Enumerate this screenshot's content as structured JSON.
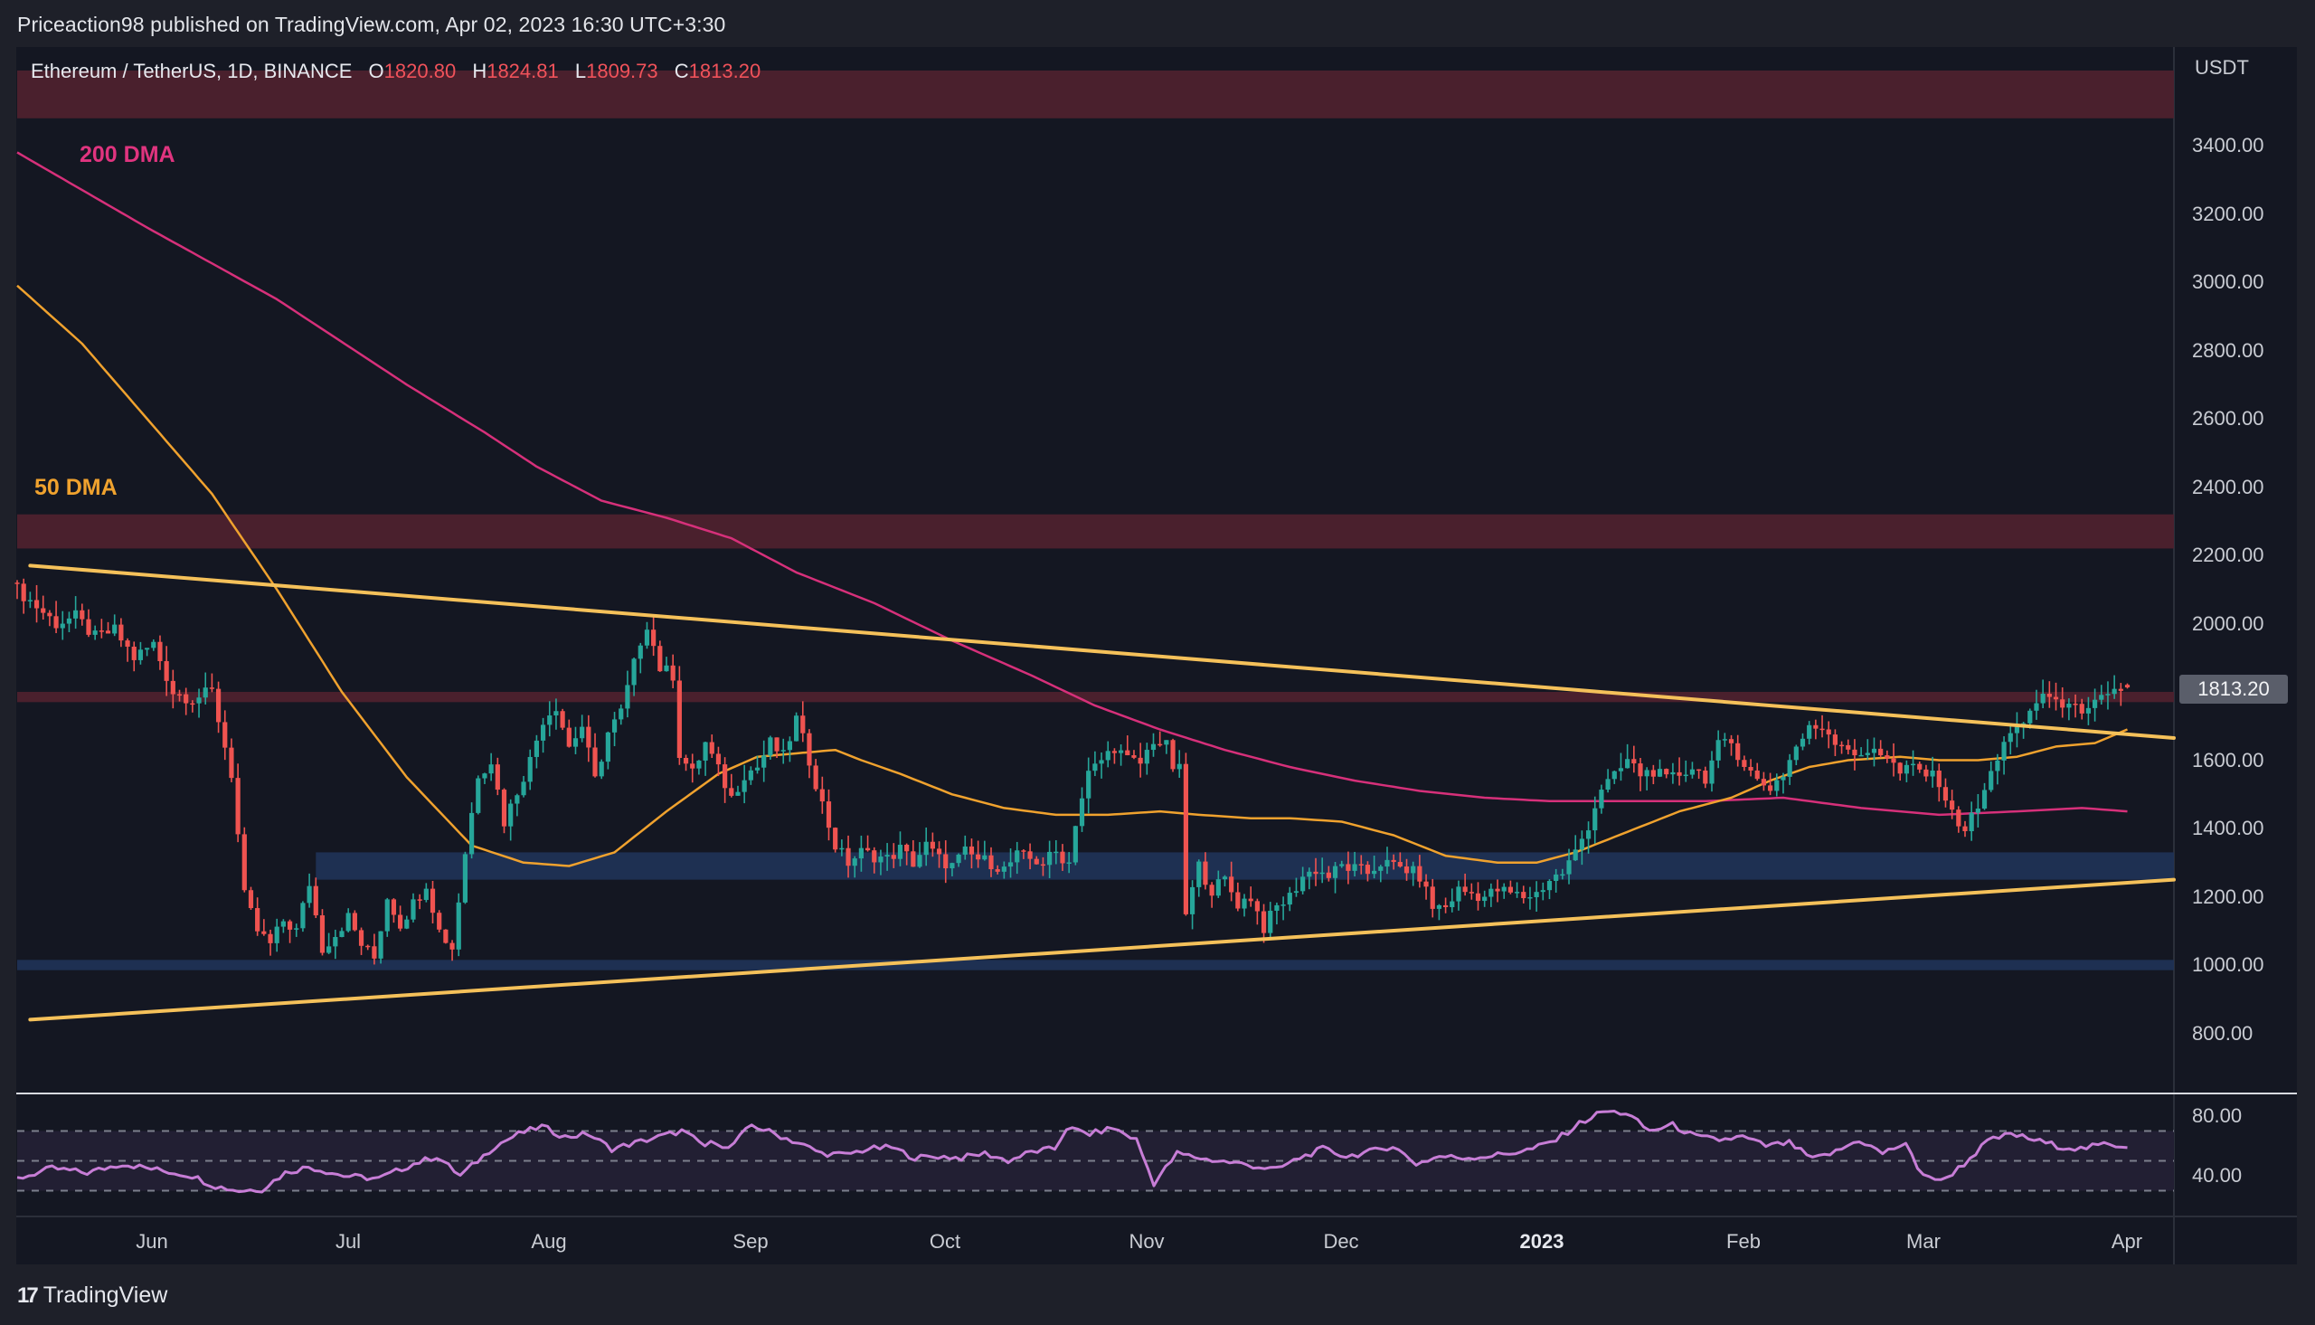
{
  "header": {
    "publisher": "Priceaction98 published on TradingView.com, Apr 02, 2023 16:30 UTC+3:30"
  },
  "legend": {
    "symbol": "Ethereum / TetherUS, 1D, BINANCE",
    "open_key": "O",
    "open": "1820.80",
    "high_key": "H",
    "high": "1824.81",
    "low_key": "L",
    "low": "1809.73",
    "close_key": "C",
    "close": "1813.20"
  },
  "annotations": {
    "ma200_label": "200 DMA",
    "ma50_label": "50 DMA"
  },
  "price_axis": {
    "unit": "USDT",
    "ticks": [
      "3400.00",
      "3200.00",
      "3000.00",
      "2800.00",
      "2600.00",
      "2400.00",
      "2200.00",
      "2000.00",
      "1600.00",
      "1400.00",
      "1200.00",
      "1000.00",
      "800.00"
    ],
    "last_price_badge": "1813.20"
  },
  "rsi_axis": {
    "ticks": [
      "80.00",
      "40.00"
    ]
  },
  "time_axis": {
    "labels": [
      "Jun",
      "Jul",
      "Aug",
      "Sep",
      "Oct",
      "Nov",
      "Dec",
      "2023",
      "Feb",
      "Mar",
      "Apr"
    ]
  },
  "footer": {
    "brand": "TradingView",
    "logo_glyph": "17"
  },
  "colors": {
    "up": "#26a69a",
    "down": "#ef5350",
    "ma200": "#d6307a",
    "ma50": "#f0a22e",
    "trendline": "#f5c15a",
    "resistance_zone": "#4d212e",
    "support_zone": "#1f3358",
    "rsi_line": "#c77dd6"
  },
  "chart_data": {
    "type": "candlestick",
    "title": "Ethereum / TetherUS, 1D, BINANCE",
    "ylabel": "USDT",
    "ylim": [
      700,
      3550
    ],
    "start_date": "2022-05-12",
    "end_date": "2023-04-02",
    "last_ohlc": {
      "open": 1820.8,
      "high": 1824.81,
      "low": 1809.73,
      "close": 1813.2
    },
    "price_anchors": [
      [
        0,
        2100
      ],
      [
        3,
        2050
      ],
      [
        6,
        2000
      ],
      [
        9,
        2020
      ],
      [
        12,
        1960
      ],
      [
        15,
        1980
      ],
      [
        18,
        1900
      ],
      [
        21,
        1940
      ],
      [
        24,
        1800
      ],
      [
        27,
        1780
      ],
      [
        30,
        1800
      ],
      [
        33,
        1560
      ],
      [
        35,
        1200
      ],
      [
        37,
        1100
      ],
      [
        39,
        1060
      ],
      [
        41,
        1130
      ],
      [
        43,
        1100
      ],
      [
        45,
        1240
      ],
      [
        47,
        1050
      ],
      [
        49,
        1090
      ],
      [
        51,
        1140
      ],
      [
        53,
        1060
      ],
      [
        55,
        1020
      ],
      [
        57,
        1200
      ],
      [
        59,
        1120
      ],
      [
        61,
        1180
      ],
      [
        63,
        1240
      ],
      [
        65,
        1100
      ],
      [
        67,
        1050
      ],
      [
        69,
        1330
      ],
      [
        71,
        1560
      ],
      [
        73,
        1600
      ],
      [
        75,
        1420
      ],
      [
        77,
        1510
      ],
      [
        79,
        1600
      ],
      [
        81,
        1720
      ],
      [
        83,
        1760
      ],
      [
        85,
        1640
      ],
      [
        87,
        1700
      ],
      [
        89,
        1540
      ],
      [
        91,
        1680
      ],
      [
        93,
        1740
      ],
      [
        95,
        1880
      ],
      [
        96,
        1950
      ],
      [
        97,
        2000
      ],
      [
        99,
        1870
      ],
      [
        101,
        1850
      ],
      [
        102,
        1620
      ],
      [
        104,
        1560
      ],
      [
        106,
        1650
      ],
      [
        108,
        1570
      ],
      [
        110,
        1490
      ],
      [
        112,
        1560
      ],
      [
        114,
        1580
      ],
      [
        116,
        1650
      ],
      [
        118,
        1610
      ],
      [
        120,
        1720
      ],
      [
        122,
        1600
      ],
      [
        124,
        1470
      ],
      [
        126,
        1350
      ],
      [
        128,
        1300
      ],
      [
        130,
        1330
      ],
      [
        132,
        1320
      ],
      [
        134,
        1310
      ],
      [
        136,
        1340
      ],
      [
        138,
        1300
      ],
      [
        140,
        1350
      ],
      [
        142,
        1310
      ],
      [
        144,
        1290
      ],
      [
        146,
        1330
      ],
      [
        148,
        1310
      ],
      [
        150,
        1300
      ],
      [
        152,
        1280
      ],
      [
        154,
        1320
      ],
      [
        156,
        1310
      ],
      [
        158,
        1300
      ],
      [
        160,
        1330
      ],
      [
        162,
        1300
      ],
      [
        163,
        1420
      ],
      [
        165,
        1560
      ],
      [
        167,
        1600
      ],
      [
        169,
        1640
      ],
      [
        171,
        1600
      ],
      [
        173,
        1590
      ],
      [
        175,
        1660
      ],
      [
        177,
        1640
      ],
      [
        178,
        1580
      ],
      [
        179,
        1570
      ],
      [
        180,
        1150
      ],
      [
        182,
        1290
      ],
      [
        184,
        1220
      ],
      [
        186,
        1250
      ],
      [
        188,
        1180
      ],
      [
        190,
        1200
      ],
      [
        192,
        1110
      ],
      [
        194,
        1170
      ],
      [
        196,
        1200
      ],
      [
        198,
        1260
      ],
      [
        200,
        1280
      ],
      [
        202,
        1260
      ],
      [
        204,
        1290
      ],
      [
        206,
        1280
      ],
      [
        208,
        1270
      ],
      [
        210,
        1300
      ],
      [
        212,
        1290
      ],
      [
        214,
        1280
      ],
      [
        216,
        1260
      ],
      [
        218,
        1170
      ],
      [
        220,
        1170
      ],
      [
        222,
        1220
      ],
      [
        224,
        1210
      ],
      [
        226,
        1200
      ],
      [
        228,
        1220
      ],
      [
        230,
        1210
      ],
      [
        232,
        1200
      ],
      [
        234,
        1210
      ],
      [
        236,
        1250
      ],
      [
        238,
        1270
      ],
      [
        240,
        1330
      ],
      [
        242,
        1410
      ],
      [
        244,
        1520
      ],
      [
        246,
        1550
      ],
      [
        248,
        1600
      ],
      [
        250,
        1560
      ],
      [
        252,
        1570
      ],
      [
        254,
        1540
      ],
      [
        256,
        1560
      ],
      [
        258,
        1580
      ],
      [
        260,
        1550
      ],
      [
        262,
        1640
      ],
      [
        264,
        1650
      ],
      [
        266,
        1590
      ],
      [
        268,
        1540
      ],
      [
        270,
        1520
      ],
      [
        272,
        1560
      ],
      [
        274,
        1640
      ],
      [
        276,
        1690
      ],
      [
        278,
        1700
      ],
      [
        280,
        1660
      ],
      [
        282,
        1640
      ],
      [
        284,
        1600
      ],
      [
        286,
        1640
      ],
      [
        288,
        1610
      ],
      [
        290,
        1560
      ],
      [
        292,
        1580
      ],
      [
        294,
        1560
      ],
      [
        296,
        1540
      ],
      [
        298,
        1440
      ],
      [
        300,
        1400
      ],
      [
        302,
        1460
      ],
      [
        304,
        1560
      ],
      [
        306,
        1660
      ],
      [
        308,
        1680
      ],
      [
        310,
        1740
      ],
      [
        312,
        1800
      ],
      [
        314,
        1760
      ],
      [
        316,
        1780
      ],
      [
        318,
        1720
      ],
      [
        320,
        1760
      ],
      [
        322,
        1800
      ],
      [
        324,
        1810
      ],
      [
        325,
        1813.2
      ]
    ],
    "ma50_anchors": [
      [
        0,
        2990
      ],
      [
        10,
        2820
      ],
      [
        20,
        2600
      ],
      [
        30,
        2380
      ],
      [
        40,
        2100
      ],
      [
        50,
        1800
      ],
      [
        60,
        1550
      ],
      [
        70,
        1350
      ],
      [
        78,
        1300
      ],
      [
        85,
        1290
      ],
      [
        92,
        1330
      ],
      [
        100,
        1450
      ],
      [
        108,
        1560
      ],
      [
        114,
        1610
      ],
      [
        120,
        1620
      ],
      [
        126,
        1630
      ],
      [
        130,
        1600
      ],
      [
        136,
        1560
      ],
      [
        144,
        1500
      ],
      [
        152,
        1460
      ],
      [
        160,
        1440
      ],
      [
        168,
        1440
      ],
      [
        176,
        1450
      ],
      [
        182,
        1440
      ],
      [
        190,
        1430
      ],
      [
        196,
        1430
      ],
      [
        204,
        1420
      ],
      [
        212,
        1380
      ],
      [
        220,
        1320
      ],
      [
        228,
        1300
      ],
      [
        234,
        1300
      ],
      [
        240,
        1330
      ],
      [
        248,
        1390
      ],
      [
        256,
        1450
      ],
      [
        264,
        1490
      ],
      [
        270,
        1540
      ],
      [
        276,
        1580
      ],
      [
        282,
        1600
      ],
      [
        290,
        1610
      ],
      [
        296,
        1600
      ],
      [
        302,
        1600
      ],
      [
        308,
        1610
      ],
      [
        314,
        1640
      ],
      [
        320,
        1650
      ],
      [
        325,
        1690
      ]
    ],
    "ma200_anchors": [
      [
        0,
        3380
      ],
      [
        20,
        3160
      ],
      [
        40,
        2950
      ],
      [
        60,
        2700
      ],
      [
        72,
        2560
      ],
      [
        80,
        2460
      ],
      [
        90,
        2360
      ],
      [
        100,
        2310
      ],
      [
        110,
        2250
      ],
      [
        120,
        2150
      ],
      [
        132,
        2060
      ],
      [
        144,
        1950
      ],
      [
        156,
        1850
      ],
      [
        166,
        1760
      ],
      [
        176,
        1690
      ],
      [
        186,
        1630
      ],
      [
        196,
        1580
      ],
      [
        206,
        1540
      ],
      [
        216,
        1510
      ],
      [
        226,
        1490
      ],
      [
        236,
        1480
      ],
      [
        248,
        1480
      ],
      [
        260,
        1480
      ],
      [
        272,
        1490
      ],
      [
        284,
        1460
      ],
      [
        296,
        1440
      ],
      [
        308,
        1450
      ],
      [
        318,
        1460
      ],
      [
        325,
        1450
      ]
    ],
    "rsi_anchors": [
      [
        0,
        38
      ],
      [
        6,
        45
      ],
      [
        12,
        42
      ],
      [
        18,
        48
      ],
      [
        24,
        44
      ],
      [
        30,
        40
      ],
      [
        34,
        33
      ],
      [
        38,
        30
      ],
      [
        42,
        31
      ],
      [
        46,
        42
      ],
      [
        50,
        46
      ],
      [
        56,
        40
      ],
      [
        62,
        38
      ],
      [
        68,
        48
      ],
      [
        72,
        53
      ],
      [
        76,
        40
      ],
      [
        82,
        60
      ],
      [
        86,
        68
      ],
      [
        90,
        73
      ],
      [
        94,
        66
      ],
      [
        98,
        68
      ],
      [
        102,
        58
      ],
      [
        106,
        62
      ],
      [
        110,
        66
      ],
      [
        114,
        70
      ],
      [
        118,
        60
      ],
      [
        120,
        63
      ],
      [
        122,
        58
      ],
      [
        124,
        66
      ],
      [
        126,
        74
      ],
      [
        130,
        68
      ],
      [
        134,
        62
      ],
      [
        138,
        55
      ],
      [
        142,
        54
      ],
      [
        146,
        58
      ],
      [
        150,
        59
      ],
      [
        154,
        52
      ],
      [
        158,
        53
      ],
      [
        162,
        52
      ],
      [
        166,
        55
      ],
      [
        170,
        50
      ],
      [
        174,
        56
      ],
      [
        178,
        58
      ],
      [
        180,
        72
      ],
      [
        184,
        68
      ],
      [
        188,
        72
      ],
      [
        192,
        64
      ],
      [
        195,
        35
      ],
      [
        199,
        55
      ],
      [
        204,
        51
      ],
      [
        210,
        48
      ],
      [
        216,
        44
      ],
      [
        220,
        52
      ],
      [
        224,
        58
      ],
      [
        228,
        53
      ],
      [
        232,
        56
      ],
      [
        236,
        60
      ],
      [
        240,
        48
      ],
      [
        244,
        53
      ],
      [
        248,
        52
      ],
      [
        252,
        53
      ],
      [
        256,
        55
      ],
      [
        260,
        58
      ],
      [
        264,
        64
      ],
      [
        268,
        75
      ],
      [
        272,
        83
      ],
      [
        276,
        82
      ],
      [
        280,
        70
      ],
      [
        284,
        74
      ],
      [
        288,
        66
      ],
      [
        292,
        64
      ],
      [
        296,
        66
      ],
      [
        300,
        60
      ],
      [
        304,
        62
      ],
      [
        308,
        51
      ],
      [
        312,
        56
      ],
      [
        316,
        64
      ],
      [
        320,
        55
      ],
      [
        324,
        62
      ],
      [
        326,
        44
      ],
      [
        330,
        36
      ],
      [
        334,
        48
      ],
      [
        338,
        63
      ],
      [
        342,
        68
      ],
      [
        346,
        64
      ],
      [
        350,
        60
      ],
      [
        354,
        58
      ],
      [
        358,
        61
      ],
      [
        362,
        60
      ]
    ],
    "rsi_levels": {
      "upper": 70,
      "middle": 50,
      "lower": 30
    },
    "zones": [
      {
        "type": "resistance",
        "from": 3480,
        "to": 3620,
        "x_start_day": 0
      },
      {
        "type": "resistance",
        "from": 2220,
        "to": 2320,
        "x_start_day": 0
      },
      {
        "type": "resistance",
        "from": 1770,
        "to": 1800,
        "x_start_day": 0
      },
      {
        "type": "support",
        "from": 1250,
        "to": 1330,
        "x_start_day": 46
      },
      {
        "type": "support",
        "from": 985,
        "to": 1015,
        "x_start_day": 0
      }
    ],
    "trendlines": [
      {
        "name": "descending-resistance",
        "from": [
          2,
          2170
        ],
        "to": [
          339,
          1665
        ]
      },
      {
        "name": "ascending-support",
        "from": [
          2,
          840
        ],
        "to": [
          339,
          1250
        ]
      }
    ]
  }
}
